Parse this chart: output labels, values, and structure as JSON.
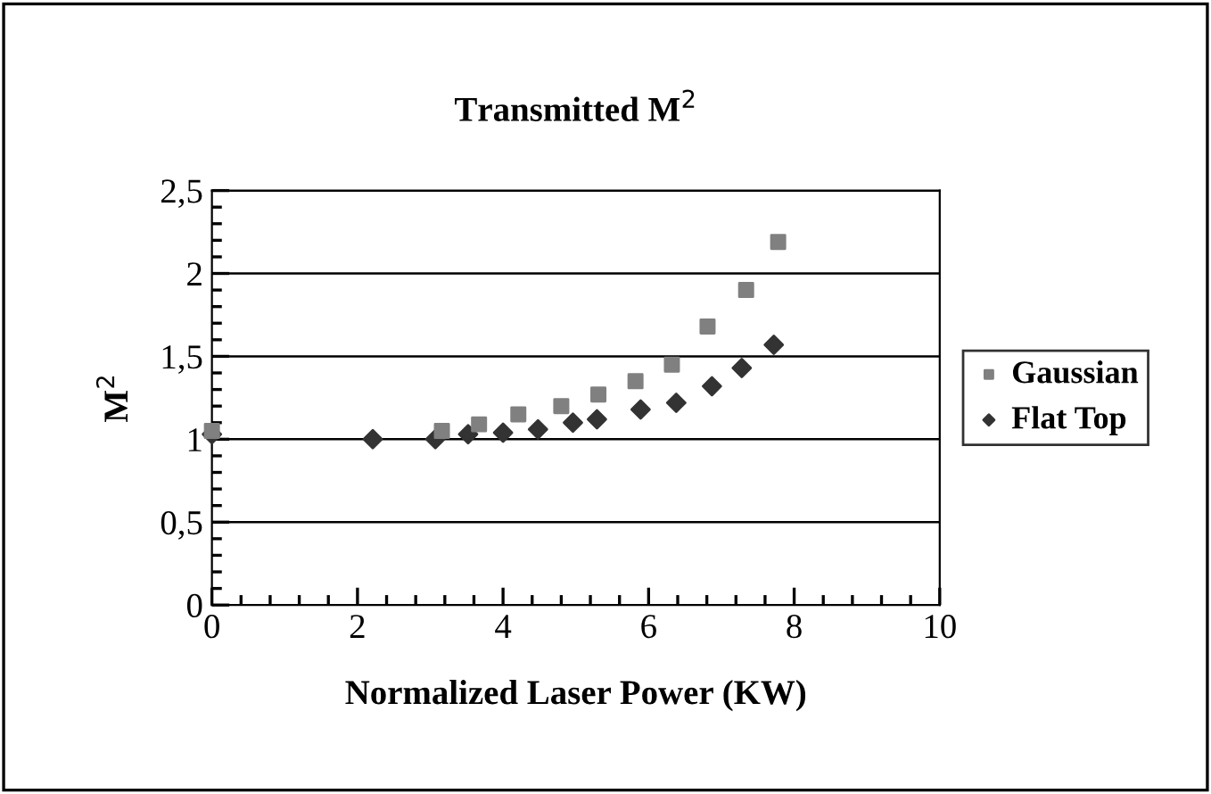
{
  "chart_data": {
    "type": "scatter",
    "title": "Transmitted M$^{2}$",
    "xlabel": "Normalized Laser Power (KW)",
    "ylabel": "M$^{2}$",
    "series": [
      {
        "name": "Gaussian",
        "color": "#808080",
        "marker": "square",
        "x": [
          0,
          3.16,
          3.67,
          4.21,
          4.8,
          5.31,
          5.82,
          6.32,
          6.81,
          7.34,
          7.78
        ],
        "values": [
          1.05,
          1.05,
          1.09,
          1.15,
          1.2,
          1.27,
          1.35,
          1.45,
          1.68,
          1.9,
          2.19
        ]
      },
      {
        "name": "Flat Top",
        "color": "#333333",
        "marker": "diamond",
        "x": [
          0,
          2.21,
          3.07,
          3.52,
          4.0,
          4.48,
          4.96,
          5.29,
          5.89,
          6.38,
          6.87,
          7.28,
          7.72
        ],
        "values": [
          1.03,
          1.0,
          1.0,
          1.03,
          1.04,
          1.06,
          1.1,
          1.12,
          1.18,
          1.22,
          1.32,
          1.43,
          1.57
        ]
      }
    ],
    "xlim": [
      0,
      10
    ],
    "xticks": [
      0,
      2,
      4,
      6,
      8,
      10
    ],
    "ylim": [
      0,
      2.5
    ],
    "yticks": [
      0,
      {
        "value": 0.5,
        "label": "0,5"
      },
      1,
      {
        "value": 1.5,
        "label": "1,5"
      },
      2,
      {
        "value": 2.5,
        "label": "2,5"
      }
    ],
    "grid": "y",
    "legend": "right"
  }
}
